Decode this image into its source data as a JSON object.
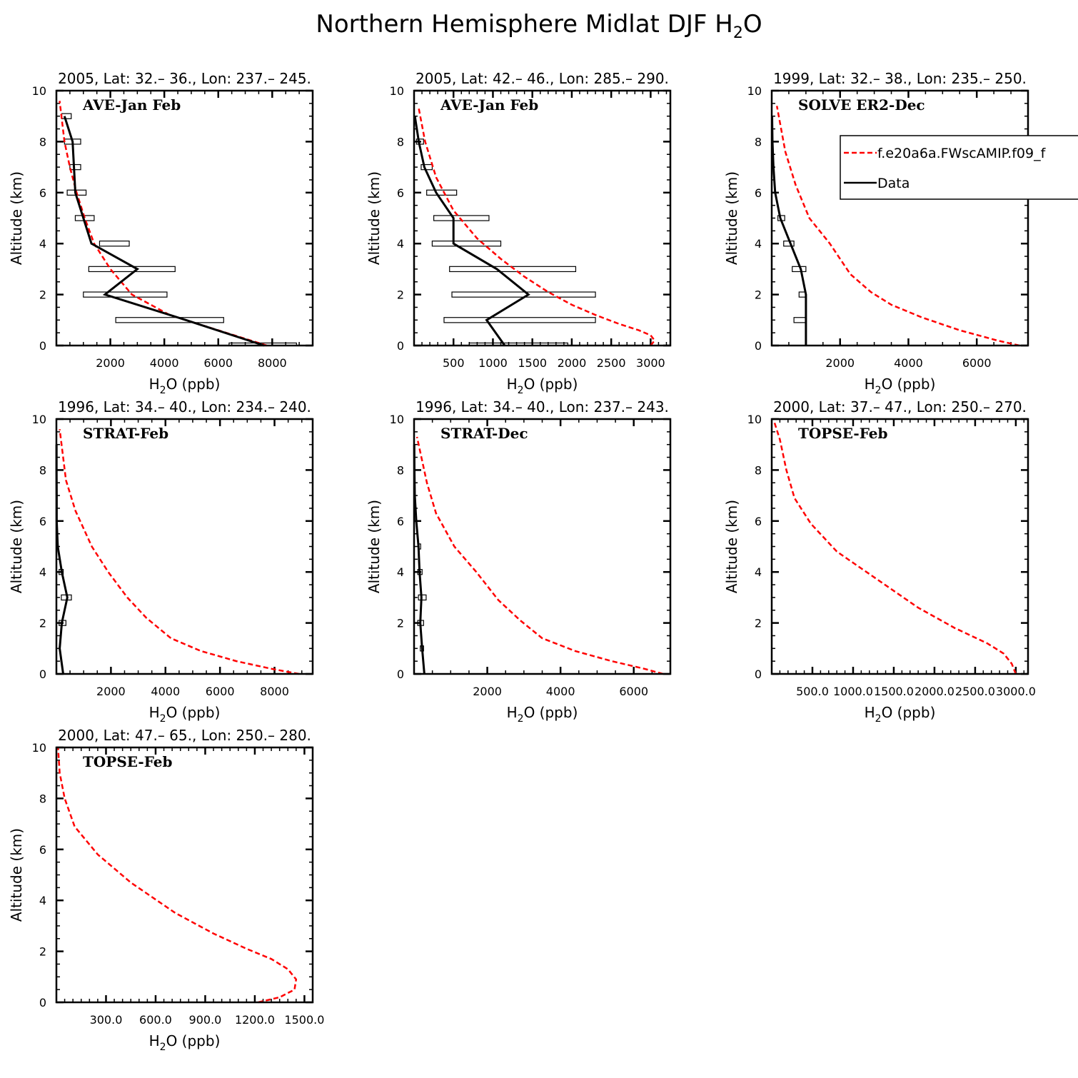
{
  "figure": {
    "title": "Northern Hemisphere Midlat DJF H",
    "title_sub": "2",
    "title_end": "O"
  },
  "legend": {
    "model_label": "f.e20a6a.FWscAMIP.f09_f",
    "data_label": "Data",
    "model_color": "#ff0000",
    "data_color": "#000000"
  },
  "chart_data": [
    {
      "type": "line",
      "title": "2005, Lat: 32.– 36., Lon: 237.– 245.",
      "campaign": "AVE-Jan Feb",
      "xlabel_main": "H",
      "xlabel_sub": "2",
      "xlabel_end": "O (ppb)",
      "ylabel": "Altitude (km)",
      "xlim": [
        0,
        9500
      ],
      "ylim": [
        0,
        10
      ],
      "xticks": [
        2000,
        4000,
        6000,
        8000
      ],
      "xtick_labels": [
        "2000",
        "4000",
        "6000",
        "8000"
      ],
      "yticks": [
        0,
        2,
        4,
        6,
        8,
        10
      ],
      "yminor": 0.5,
      "xminor": 500,
      "model": {
        "x": [
          7800,
          6000,
          4200,
          2800,
          2000,
          1400,
          1050,
          750,
          500,
          300,
          120
        ],
        "y": [
          0,
          0.6,
          1.2,
          2,
          3,
          4,
          5,
          6,
          7,
          8,
          9.6
        ]
      },
      "data": {
        "x": [
          7700,
          4800,
          1800,
          3000,
          1300,
          1000,
          700,
          650,
          600,
          300
        ],
        "y": [
          0,
          1,
          2,
          3,
          4,
          5,
          6,
          7,
          8,
          9
        ]
      },
      "boxes": [
        {
          "y": 0,
          "lo": 6400,
          "hi": 8900
        },
        {
          "y": 1,
          "lo": 2200,
          "hi": 6200
        },
        {
          "y": 2,
          "lo": 1000,
          "hi": 4100
        },
        {
          "y": 3,
          "lo": 1200,
          "hi": 4400
        },
        {
          "y": 4,
          "lo": 1600,
          "hi": 2700
        },
        {
          "y": 5,
          "lo": 700,
          "hi": 1400
        },
        {
          "y": 6,
          "lo": 400,
          "hi": 1100
        },
        {
          "y": 7,
          "lo": 500,
          "hi": 900
        },
        {
          "y": 8,
          "lo": 300,
          "hi": 900
        },
        {
          "y": 9,
          "lo": 200,
          "hi": 550
        }
      ]
    },
    {
      "type": "line",
      "title": "2005, Lat: 42.– 46., Lon: 285.– 290.",
      "campaign": "AVE-Jan Feb",
      "xlabel_main": "H",
      "xlabel_sub": "2",
      "xlabel_end": "O (ppb)",
      "ylabel": "Altitude (km)",
      "xlim": [
        0,
        3250
      ],
      "ylim": [
        0,
        10
      ],
      "xticks": [
        500,
        1000,
        1500,
        2000,
        2500,
        3000
      ],
      "xtick_labels": [
        "500",
        "1000",
        "1500",
        "2000",
        "2500",
        "3000"
      ],
      "yticks": [
        0,
        2,
        4,
        6,
        8,
        10
      ],
      "yminor": 0.5,
      "xminor": 100,
      "model": {
        "x": [
          3000,
          3050,
          3000,
          2850,
          2600,
          2300,
          2000,
          1700,
          1400,
          1100,
          800,
          500,
          280,
          140,
          60
        ],
        "y": [
          0,
          0.2,
          0.4,
          0.6,
          0.85,
          1.2,
          1.6,
          2.1,
          2.7,
          3.4,
          4.2,
          5.3,
          6.6,
          8,
          9.3
        ]
      },
      "data": {
        "x": [
          1150,
          920,
          1450,
          1050,
          500,
          500,
          280,
          130,
          60,
          10
        ],
        "y": [
          0,
          1,
          2,
          3,
          4,
          5,
          6,
          7,
          8,
          9
        ]
      },
      "boxes": [
        {
          "y": 0,
          "lo": 700,
          "hi": 1950
        },
        {
          "y": 1,
          "lo": 380,
          "hi": 2300
        },
        {
          "y": 2,
          "lo": 480,
          "hi": 2300
        },
        {
          "y": 3,
          "lo": 450,
          "hi": 2050
        },
        {
          "y": 4,
          "lo": 230,
          "hi": 1100
        },
        {
          "y": 5,
          "lo": 250,
          "hi": 950
        },
        {
          "y": 6,
          "lo": 160,
          "hi": 540
        },
        {
          "y": 7,
          "lo": 90,
          "hi": 230
        },
        {
          "y": 8,
          "lo": 30,
          "hi": 120
        }
      ]
    },
    {
      "type": "line",
      "title": "1999, Lat: 32.– 38., Lon: 235.– 250.",
      "campaign": "SOLVE ER2-Dec",
      "xlabel_main": "H",
      "xlabel_sub": "2",
      "xlabel_end": "O (ppb)",
      "ylabel": "Altitude (km)",
      "xlim": [
        0,
        7500
      ],
      "ylim": [
        0,
        10
      ],
      "xticks": [
        2000,
        4000,
        6000
      ],
      "xtick_labels": [
        "2000",
        "4000",
        "6000"
      ],
      "yticks": [
        0,
        2,
        4,
        6,
        8,
        10
      ],
      "yminor": 0.5,
      "xminor": 500,
      "model": {
        "x": [
          7250,
          6600,
          5500,
          4400,
          3500,
          2900,
          2300,
          1700,
          1100,
          700,
          400,
          150
        ],
        "y": [
          0,
          0.2,
          0.6,
          1.1,
          1.6,
          2.1,
          2.8,
          4,
          5,
          6.3,
          7.6,
          9.4
        ]
      },
      "data": {
        "x": [
          1000,
          1000,
          1000,
          850,
          550,
          250,
          100,
          50,
          20,
          10
        ],
        "y": [
          0,
          1,
          2,
          3,
          4,
          5,
          6,
          7,
          8,
          9
        ]
      },
      "boxes": [
        {
          "y": 1,
          "lo": 650,
          "hi": 1000
        },
        {
          "y": 2,
          "lo": 800,
          "hi": 1000
        },
        {
          "y": 3,
          "lo": 600,
          "hi": 1000
        },
        {
          "y": 4,
          "lo": 350,
          "hi": 650
        },
        {
          "y": 5,
          "lo": 180,
          "hi": 380
        }
      ]
    },
    {
      "type": "line",
      "title": "1996, Lat: 34.– 40., Lon: 234.– 240.",
      "campaign": "STRAT-Feb",
      "xlabel_main": "H",
      "xlabel_sub": "2",
      "xlabel_end": "O (ppb)",
      "ylabel": "Altitude (km)",
      "xlim": [
        0,
        9400
      ],
      "ylim": [
        0,
        10
      ],
      "xticks": [
        2000,
        4000,
        6000,
        8000
      ],
      "xtick_labels": [
        "2000",
        "4000",
        "6000",
        "8000"
      ],
      "yticks": [
        0,
        2,
        4,
        6,
        8,
        10
      ],
      "yminor": 0.5,
      "xminor": 500,
      "model": {
        "x": [
          8900,
          7900,
          6600,
          5300,
          4200,
          3300,
          2600,
          1900,
          1300,
          700,
          350,
          120
        ],
        "y": [
          0,
          0.2,
          0.5,
          0.9,
          1.4,
          2.2,
          3,
          4,
          5,
          6.4,
          7.6,
          9.6
        ]
      },
      "data": {
        "x": [
          250,
          120,
          200,
          400,
          200,
          50,
          10,
          10,
          5,
          5
        ],
        "y": [
          0,
          1,
          2,
          3,
          4,
          5,
          6,
          7,
          8,
          9
        ]
      },
      "boxes": [
        {
          "y": 2,
          "lo": 100,
          "hi": 350
        },
        {
          "y": 3,
          "lo": 180,
          "hi": 550
        },
        {
          "y": 4,
          "lo": 100,
          "hi": 250
        }
      ]
    },
    {
      "type": "line",
      "title": "1996, Lat: 34.– 40., Lon: 237.– 243.",
      "campaign": "STRAT-Dec",
      "xlabel_main": "H",
      "xlabel_sub": "2",
      "xlabel_end": "O (ppb)",
      "ylabel": "Altitude (km)",
      "xlim": [
        0,
        7000
      ],
      "ylim": [
        0,
        10
      ],
      "xticks": [
        2000,
        4000,
        6000
      ],
      "xtick_labels": [
        "2000",
        "4000",
        "6000"
      ],
      "yticks": [
        0,
        2,
        4,
        6,
        8,
        10
      ],
      "yminor": 0.5,
      "xminor": 500,
      "model": {
        "x": [
          6800,
          6300,
          5400,
          4400,
          3500,
          2900,
          2300,
          1700,
          1100,
          600,
          350,
          80
        ],
        "y": [
          0,
          0.2,
          0.5,
          0.9,
          1.4,
          2.1,
          2.9,
          4,
          5,
          6.3,
          7.5,
          9.3
        ]
      },
      "data": {
        "x": [
          280,
          220,
          170,
          200,
          150,
          120,
          60,
          20,
          10,
          5
        ],
        "y": [
          0,
          1,
          2,
          3,
          4,
          5,
          6,
          7,
          8,
          9
        ]
      },
      "boxes": [
        {
          "y": 1,
          "lo": 170,
          "hi": 260
        },
        {
          "y": 2,
          "lo": 100,
          "hi": 260
        },
        {
          "y": 3,
          "lo": 120,
          "hi": 330
        },
        {
          "y": 4,
          "lo": 100,
          "hi": 220
        },
        {
          "y": 5,
          "lo": 120,
          "hi": 180
        }
      ]
    },
    {
      "type": "line",
      "title": "2000, Lat: 37.– 47., Lon: 250.– 270.",
      "campaign": "TOPSE-Feb",
      "xlabel_main": "H",
      "xlabel_sub": "2",
      "xlabel_end": "O (ppb)",
      "ylabel": "Altitude (km)",
      "xlim": [
        0,
        3150
      ],
      "ylim": [
        0,
        10
      ],
      "xticks": [
        500,
        1000,
        1500,
        2000,
        2500,
        3000
      ],
      "xtick_labels": [
        "500.0",
        "1000.0",
        "1500.0",
        "2000.0",
        "2500.0",
        "3000.0"
      ],
      "yticks": [
        0,
        2,
        4,
        6,
        8,
        10
      ],
      "yminor": 0.5,
      "xminor": 100,
      "model": {
        "x": [
          3000,
          2950,
          2850,
          2650,
          2250,
          1800,
          1300,
          800,
          480,
          280,
          180,
          100,
          30
        ],
        "y": [
          0,
          0.4,
          0.8,
          1.2,
          1.8,
          2.6,
          3.7,
          4.8,
          5.9,
          6.9,
          8,
          9.2,
          9.9
        ]
      }
    },
    {
      "type": "line",
      "title": "2000, Lat: 47.– 65., Lon: 250.– 280.",
      "campaign": "TOPSE-Feb",
      "xlabel_main": "H",
      "xlabel_sub": "2",
      "xlabel_end": "O (ppb)",
      "ylabel": "Altitude (km)",
      "xlim": [
        0,
        1550
      ],
      "ylim": [
        0,
        10
      ],
      "xticks": [
        300,
        600,
        900,
        1200,
        1500
      ],
      "xtick_labels": [
        "300.0",
        "600.0",
        "900.0",
        "1200.0",
        "1500.0"
      ],
      "yticks": [
        0,
        2,
        4,
        6,
        8,
        10
      ],
      "yminor": 0.5,
      "xminor": 50,
      "model": {
        "x": [
          1220,
          1350,
          1440,
          1450,
          1400,
          1300,
          1150,
          950,
          720,
          450,
          250,
          110,
          50,
          20,
          10
        ],
        "y": [
          0,
          0.2,
          0.5,
          0.9,
          1.3,
          1.7,
          2.1,
          2.7,
          3.5,
          4.7,
          5.8,
          6.9,
          8,
          9,
          10
        ]
      }
    }
  ]
}
